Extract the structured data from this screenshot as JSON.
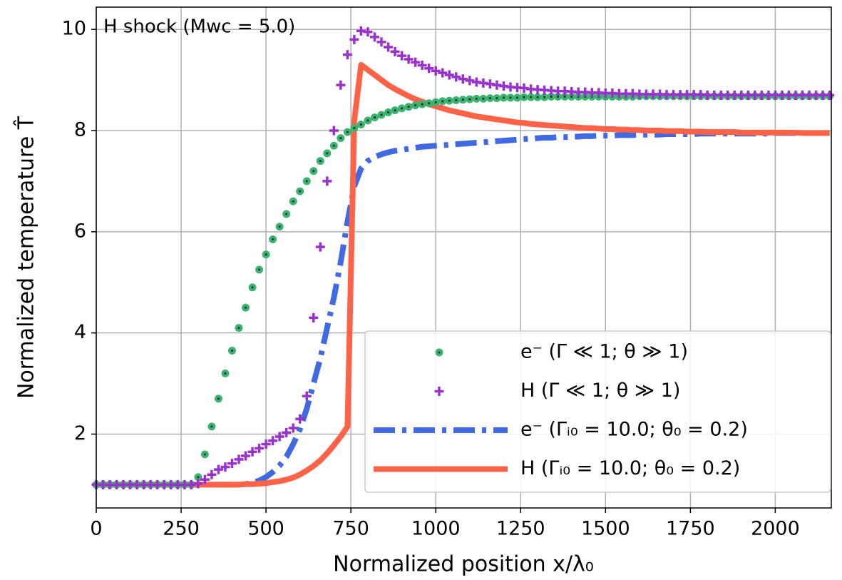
{
  "chart_data": {
    "type": "mixed",
    "title": "H shock (Mwc = 5.0)",
    "xlabel": "Normalized position x/λ₀",
    "ylabel": "Normalized temperature T̂",
    "xlim": [
      0,
      2165
    ],
    "ylim": [
      0.54,
      10.44
    ],
    "xticks": [
      0,
      250,
      500,
      750,
      1000,
      1250,
      1500,
      1750,
      2000
    ],
    "yticks": [
      2,
      4,
      6,
      8,
      10
    ],
    "grid": true,
    "legend": "lower right",
    "x": [
      0,
      20,
      40,
      60,
      80,
      100,
      120,
      140,
      160,
      180,
      200,
      220,
      240,
      260,
      280,
      300,
      320,
      340,
      360,
      380,
      400,
      420,
      440,
      460,
      480,
      500,
      520,
      540,
      560,
      580,
      600,
      620,
      640,
      660,
      680,
      700,
      720,
      740,
      760,
      780,
      800,
      820,
      840,
      860,
      880,
      900,
      920,
      940,
      960,
      980,
      1000,
      1020,
      1040,
      1060,
      1080,
      1100,
      1120,
      1140,
      1160,
      1180,
      1200,
      1220,
      1240,
      1260,
      1280,
      1300,
      1320,
      1340,
      1360,
      1380,
      1400,
      1420,
      1440,
      1460,
      1480,
      1500,
      1520,
      1540,
      1560,
      1580,
      1600,
      1620,
      1640,
      1660,
      1680,
      1700,
      1720,
      1740,
      1760,
      1780,
      1800,
      1820,
      1840,
      1860,
      1880,
      1900,
      1920,
      1940,
      1960,
      1980,
      2000,
      2020,
      2040,
      2060,
      2080,
      2100,
      2120,
      2140,
      2160
    ],
    "series": [
      {
        "name": "e⁻ (Γ ≪ 1; θ ≫ 1)",
        "color": "#3cb371",
        "marker": "o",
        "values": [
          1,
          1,
          1,
          1,
          1,
          1,
          1,
          1,
          1,
          1,
          1,
          1,
          1,
          1,
          1,
          1.15,
          1.6,
          2.15,
          2.7,
          3.2,
          3.65,
          4.1,
          4.5,
          4.9,
          5.25,
          5.55,
          5.85,
          6.1,
          6.35,
          6.6,
          6.8,
          7.0,
          7.2,
          7.4,
          7.55,
          7.7,
          7.85,
          7.97,
          8.05,
          8.12,
          8.2,
          8.26,
          8.31,
          8.36,
          8.4,
          8.44,
          8.47,
          8.5,
          8.52,
          8.54,
          8.56,
          8.58,
          8.59,
          8.6,
          8.61,
          8.62,
          8.63,
          8.63,
          8.64,
          8.64,
          8.65,
          8.65,
          8.65,
          8.66,
          8.66,
          8.66,
          8.66,
          8.67,
          8.67,
          8.67,
          8.67,
          8.67,
          8.67,
          8.67,
          8.67,
          8.67,
          8.67,
          8.67,
          8.67,
          8.67,
          8.68,
          8.68,
          8.68,
          8.68,
          8.68,
          8.68,
          8.68,
          8.68,
          8.68,
          8.68,
          8.68,
          8.68,
          8.68,
          8.68,
          8.68,
          8.68,
          8.68,
          8.68,
          8.68,
          8.68,
          8.68,
          8.68,
          8.68,
          8.68,
          8.68,
          8.68,
          8.68,
          8.68,
          8.68
        ]
      },
      {
        "name": "H (Γ ≪ 1; θ ≫ 1)",
        "color": "#9932cc",
        "marker": "+",
        "values": [
          1,
          1,
          1,
          1,
          1,
          1,
          1,
          1,
          1,
          1,
          1,
          1,
          1,
          1,
          1,
          1.02,
          1.1,
          1.2,
          1.3,
          1.35,
          1.42,
          1.5,
          1.57,
          1.65,
          1.72,
          1.8,
          1.87,
          1.95,
          2.03,
          2.12,
          2.3,
          2.75,
          4.3,
          5.7,
          7.0,
          8.0,
          8.9,
          9.5,
          9.8,
          9.97,
          9.95,
          9.85,
          9.75,
          9.65,
          9.56,
          9.48,
          9.41,
          9.35,
          9.29,
          9.23,
          9.18,
          9.14,
          9.1,
          9.06,
          9.02,
          8.99,
          8.96,
          8.94,
          8.92,
          8.9,
          8.88,
          8.86,
          8.85,
          8.84,
          8.82,
          8.81,
          8.8,
          8.79,
          8.78,
          8.78,
          8.77,
          8.76,
          8.76,
          8.75,
          8.75,
          8.74,
          8.74,
          8.73,
          8.73,
          8.73,
          8.72,
          8.72,
          8.72,
          8.72,
          8.71,
          8.71,
          8.71,
          8.71,
          8.71,
          8.71,
          8.7,
          8.7,
          8.7,
          8.7,
          8.7,
          8.7,
          8.7,
          8.7,
          8.7,
          8.7,
          8.7,
          8.7,
          8.7,
          8.7,
          8.7,
          8.7,
          8.7,
          8.7,
          8.7
        ]
      },
      {
        "name": "e⁻ (Γᵢ₀ = 10.0; θ₀ = 0.2)",
        "color": "#4169e1",
        "linestyle": "-.",
        "values": [
          1,
          1,
          1,
          1,
          1,
          1,
          1,
          1,
          1,
          1,
          1,
          1,
          1,
          1,
          1,
          1,
          1,
          1,
          1,
          1,
          1,
          1,
          1.01,
          1.04,
          1.08,
          1.15,
          1.25,
          1.38,
          1.55,
          1.8,
          2.1,
          2.5,
          3.0,
          3.5,
          4.1,
          4.7,
          5.4,
          6.2,
          6.9,
          7.25,
          7.4,
          7.48,
          7.53,
          7.57,
          7.6,
          7.62,
          7.64,
          7.66,
          7.68,
          7.69,
          7.7,
          7.71,
          7.72,
          7.73,
          7.74,
          7.75,
          7.76,
          7.77,
          7.78,
          7.79,
          7.8,
          7.81,
          7.82,
          7.83,
          7.84,
          7.85,
          7.86,
          7.86,
          7.87,
          7.87,
          7.88,
          7.88,
          7.89,
          7.89,
          7.9,
          7.9,
          7.9,
          7.91,
          7.91,
          7.91,
          7.92,
          7.92,
          7.92,
          7.92,
          7.93,
          7.93,
          7.93,
          7.93,
          7.93,
          7.94,
          7.94,
          7.94,
          7.94,
          7.94,
          7.94,
          7.94,
          7.94,
          7.94,
          7.94,
          7.94,
          7.95,
          7.95,
          7.95,
          7.95,
          7.95,
          7.95,
          7.95,
          7.95,
          7.95
        ]
      },
      {
        "name": "H (Γᵢ₀ = 10.0; θ₀ = 0.2)",
        "color": "#ff6347",
        "linestyle": "-",
        "values": [
          1,
          1,
          1,
          1,
          1,
          1,
          1,
          1,
          1,
          1,
          1,
          1,
          1,
          1,
          1,
          1,
          1,
          1,
          1,
          1,
          1,
          1,
          1.01,
          1.01,
          1.02,
          1.03,
          1.05,
          1.07,
          1.1,
          1.14,
          1.2,
          1.28,
          1.37,
          1.48,
          1.62,
          1.78,
          1.95,
          2.15,
          8.2,
          9.3,
          9.2,
          9.1,
          9.0,
          8.9,
          8.82,
          8.75,
          8.68,
          8.62,
          8.57,
          8.52,
          8.48,
          8.44,
          8.4,
          8.37,
          8.34,
          8.31,
          8.28,
          8.26,
          8.24,
          8.22,
          8.2,
          8.18,
          8.16,
          8.15,
          8.13,
          8.12,
          8.11,
          8.1,
          8.09,
          8.08,
          8.07,
          8.06,
          8.05,
          8.05,
          8.04,
          8.03,
          8.03,
          8.02,
          8.02,
          8.01,
          8.01,
          8.0,
          8.0,
          8.0,
          7.99,
          7.99,
          7.99,
          7.98,
          7.98,
          7.98,
          7.97,
          7.97,
          7.97,
          7.97,
          7.97,
          7.96,
          7.96,
          7.96,
          7.96,
          7.96,
          7.96,
          7.96,
          7.96,
          7.96,
          7.95,
          7.95,
          7.95,
          7.95,
          7.95
        ]
      }
    ]
  }
}
